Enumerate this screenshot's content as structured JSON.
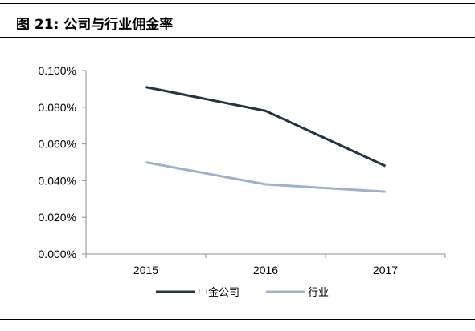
{
  "figure": {
    "label": "图 21:",
    "caption": "公司与行业佣金率"
  },
  "chart_data": {
    "type": "line",
    "title": "",
    "xlabel": "",
    "ylabel": "",
    "x": [
      "2015",
      "2016",
      "2017"
    ],
    "ylim": [
      0,
      0.1
    ],
    "y_ticks": [
      "0.000%",
      "0.020%",
      "0.040%",
      "0.060%",
      "0.080%",
      "0.100%"
    ],
    "y_tick_values": [
      0,
      0.02,
      0.04,
      0.06,
      0.08,
      0.1
    ],
    "grid": false,
    "legend_position": "bottom",
    "series": [
      {
        "name": "中金公司",
        "values": [
          0.091,
          0.078,
          0.048
        ],
        "color": "#243448"
      },
      {
        "name": "行业",
        "values": [
          0.05,
          0.038,
          0.034
        ],
        "color": "#9db2cf"
      }
    ]
  }
}
